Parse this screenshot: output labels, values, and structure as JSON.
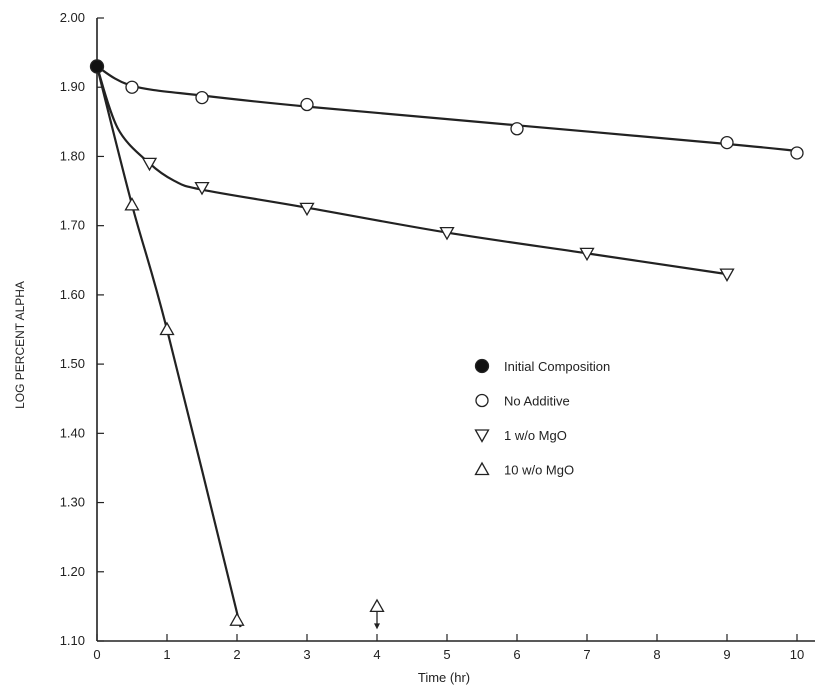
{
  "chart_data": {
    "type": "scatter",
    "xlabel": "Time (hr)",
    "ylabel": "LOG PERCENT ALPHA",
    "xlim": [
      0,
      10
    ],
    "ylim": [
      1.1,
      2.0
    ],
    "x_ticks": [
      "0",
      "1",
      "2",
      "3",
      "4",
      "5",
      "6",
      "7",
      "8",
      "9",
      "10"
    ],
    "y_ticks": [
      "1.10",
      "1.20",
      "1.30",
      "1.40",
      "1.50",
      "1.60",
      "1.70",
      "1.80",
      "1.90",
      "2.00"
    ],
    "grid": false,
    "legend_position": "center-right",
    "series": [
      {
        "name": "Initial Composition",
        "marker": "filled-circle",
        "x": [
          0
        ],
        "y": [
          1.93
        ]
      },
      {
        "name": "No Additive",
        "marker": "open-circle",
        "x": [
          0.5,
          1.5,
          3,
          6,
          9,
          10
        ],
        "y": [
          1.9,
          1.885,
          1.875,
          1.84,
          1.82,
          1.805
        ]
      },
      {
        "name": "1 w/o MgO",
        "marker": "triangle-down",
        "x": [
          0.75,
          1.5,
          3,
          5,
          7,
          9
        ],
        "y": [
          1.79,
          1.755,
          1.725,
          1.69,
          1.66,
          1.63
        ]
      },
      {
        "name": "10 w/o MgO",
        "marker": "triangle-up",
        "x": [
          0.5,
          1,
          2,
          4
        ],
        "y": [
          1.73,
          1.55,
          1.13,
          1.15
        ]
      }
    ],
    "curves": [
      {
        "series": "No Additive",
        "x": [
          0,
          0.5,
          1.5,
          3,
          6,
          9,
          10
        ],
        "y": [
          1.93,
          1.902,
          1.888,
          1.872,
          1.845,
          1.818,
          1.808
        ]
      },
      {
        "series": "1 w/o MgO",
        "x": [
          0,
          0.3,
          0.75,
          1.1,
          1.5,
          3,
          5,
          7,
          9
        ],
        "y": [
          1.93,
          1.84,
          1.79,
          1.765,
          1.752,
          1.726,
          1.69,
          1.66,
          1.63
        ]
      },
      {
        "series": "10 w/o MgO",
        "x": [
          0,
          0.5,
          1,
          2.05
        ],
        "y": [
          1.93,
          1.73,
          1.55,
          1.12
        ]
      }
    ],
    "annotations": [
      {
        "type": "arrow-down",
        "x": 4,
        "y": 1.15
      }
    ]
  }
}
